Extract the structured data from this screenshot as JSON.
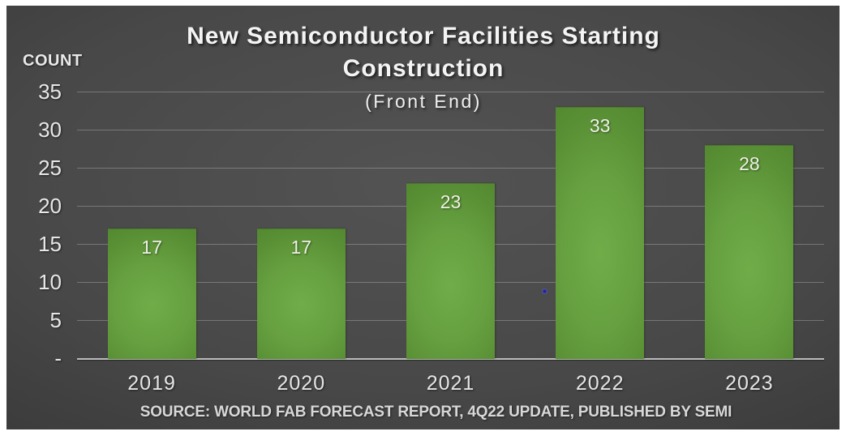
{
  "slide": {
    "background_center_color": "#535353",
    "background_edge_color": "#2b2b2b",
    "frame_color": "#ffffff"
  },
  "chart_data": {
    "type": "bar",
    "title_line1": "New Semiconductor Facilities Starting",
    "title_line2": "Construction",
    "subtitle": "(Front End)",
    "ylabel": "COUNT",
    "categories": [
      "2019",
      "2020",
      "2021",
      "2022",
      "2023"
    ],
    "values": [
      17,
      17,
      23,
      33,
      28
    ],
    "ylim": [
      0,
      35
    ],
    "ytick_values": [
      35,
      30,
      25,
      20,
      15,
      10,
      5,
      0
    ],
    "ytick_labels": [
      "35",
      "30",
      "25",
      "20",
      "15",
      "10",
      "5",
      "-"
    ],
    "grid": true,
    "legend": "none",
    "bar_color": "#66a040",
    "text_color": "#e8e8e8",
    "source": "SOURCE: WORLD FAB FORECAST REPORT, 4Q22 UPDATE, PUBLISHED BY SEMI"
  }
}
